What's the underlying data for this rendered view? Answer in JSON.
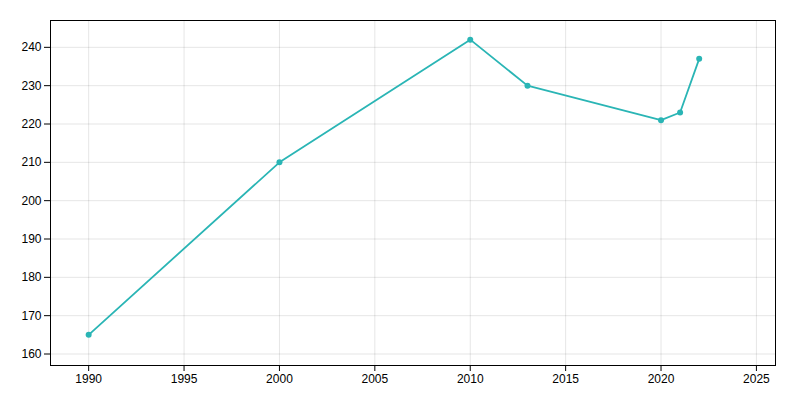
{
  "chart_data": {
    "type": "line",
    "x": [
      1990,
      2000,
      2010,
      2013,
      2020,
      2021,
      2022
    ],
    "values": [
      165,
      210,
      242,
      230,
      221,
      223,
      237
    ],
    "color": "#2ab5b5",
    "marker": "circle",
    "xlim": [
      1988,
      2026
    ],
    "ylim": [
      157,
      247
    ],
    "xticks": [
      1990,
      1995,
      2000,
      2005,
      2010,
      2015,
      2020,
      2025
    ],
    "yticks": [
      160,
      170,
      180,
      190,
      200,
      210,
      220,
      230,
      240
    ],
    "grid": true
  }
}
